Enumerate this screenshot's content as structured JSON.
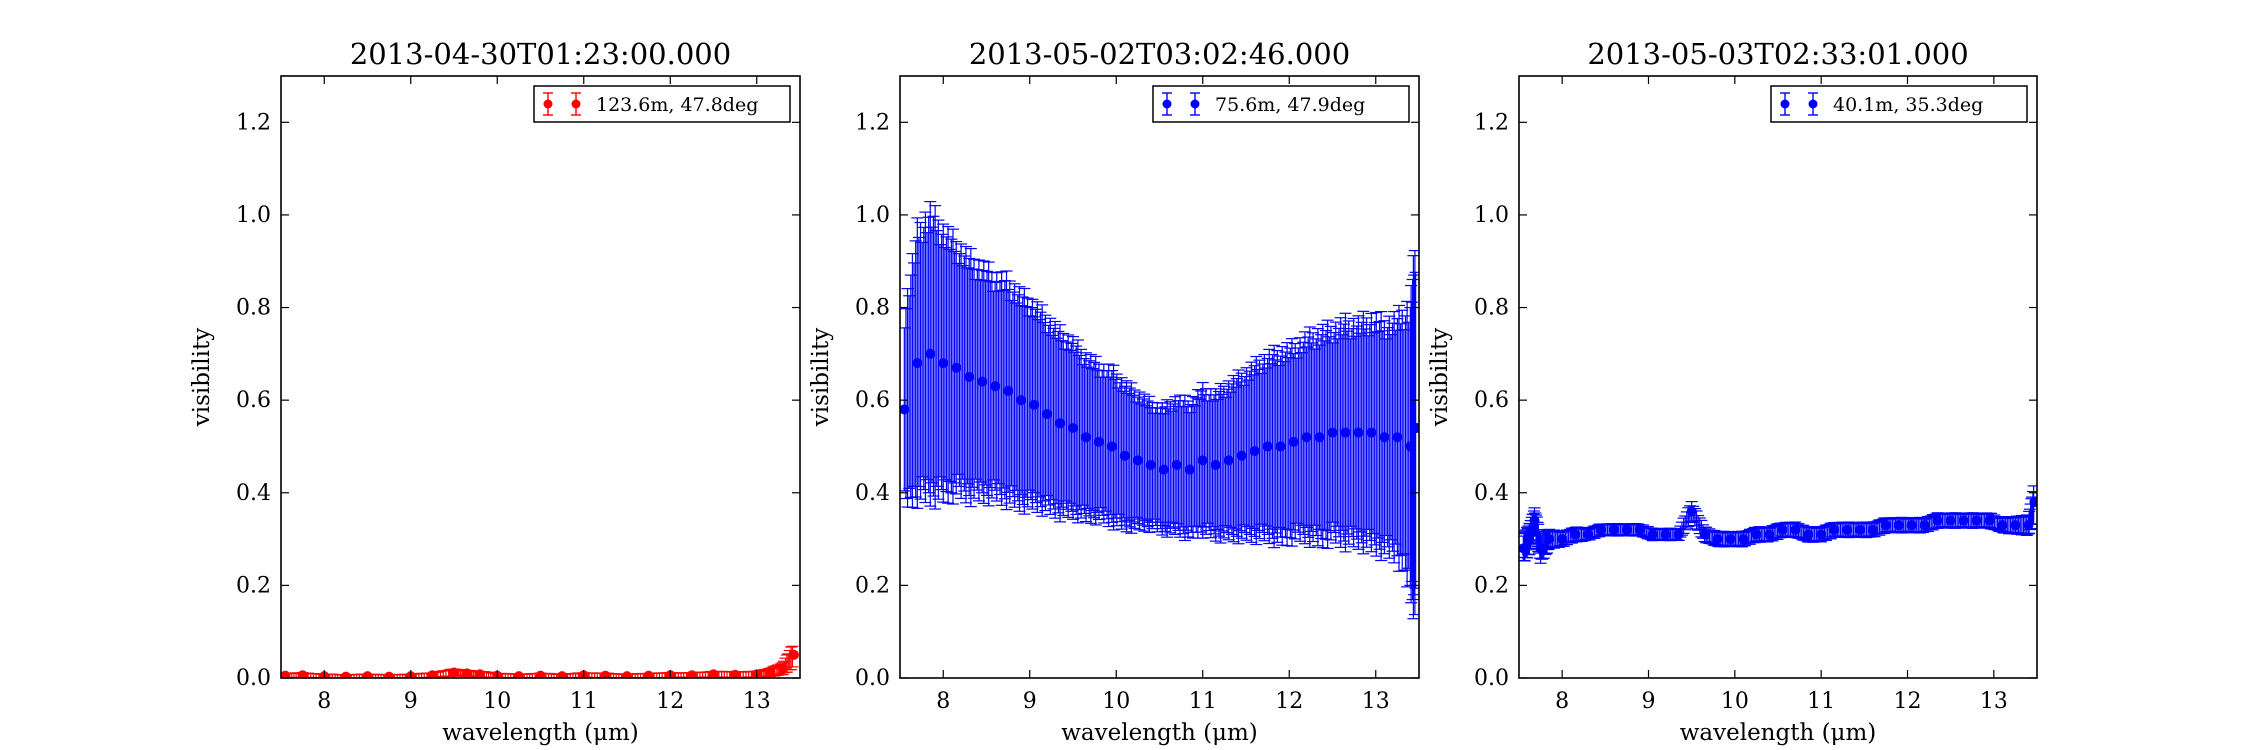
{
  "chart_data": [
    {
      "type": "scatter",
      "title": "2013-04-30T01:23:00.000",
      "xlabel": "wavelength (μm)",
      "ylabel": "visibility",
      "xlim": [
        7.5,
        13.5
      ],
      "ylim": [
        0.0,
        1.3
      ],
      "xticks": [
        8,
        9,
        10,
        11,
        12,
        13
      ],
      "yticks": [
        0.0,
        0.2,
        0.4,
        0.6,
        0.8,
        1.0,
        1.2
      ],
      "xtick_labels": [
        "8",
        "9",
        "10",
        "11",
        "12",
        "13"
      ],
      "ytick_labels": [
        "0.0",
        "0.2",
        "0.4",
        "0.6",
        "0.8",
        "1.0",
        "1.2"
      ],
      "legend_position": "top-right",
      "grid": false,
      "series": [
        {
          "name": "123.6m, 47.8deg",
          "color": "#ff0000",
          "x": [
            7.55,
            7.75,
            8.0,
            8.25,
            8.5,
            8.75,
            9.0,
            9.25,
            9.5,
            9.65,
            9.8,
            10.0,
            10.25,
            10.5,
            10.75,
            11.0,
            11.25,
            11.5,
            11.75,
            12.0,
            12.25,
            12.5,
            12.75,
            13.0,
            13.15,
            13.3,
            13.43
          ],
          "y": [
            0.005,
            0.006,
            0.004,
            0.003,
            0.004,
            0.003,
            0.004,
            0.006,
            0.012,
            0.01,
            0.008,
            0.005,
            0.004,
            0.005,
            0.004,
            0.006,
            0.005,
            0.004,
            0.005,
            0.006,
            0.006,
            0.008,
            0.007,
            0.008,
            0.012,
            0.02,
            0.05
          ],
          "err": [
            0.005,
            0.005,
            0.004,
            0.004,
            0.004,
            0.004,
            0.004,
            0.005,
            0.007,
            0.006,
            0.006,
            0.005,
            0.004,
            0.005,
            0.004,
            0.005,
            0.005,
            0.004,
            0.005,
            0.005,
            0.005,
            0.006,
            0.006,
            0.006,
            0.008,
            0.012,
            0.025
          ]
        }
      ]
    },
    {
      "type": "scatter",
      "title": "2013-05-02T03:02:46.000",
      "xlabel": "wavelength (μm)",
      "ylabel": "visibility",
      "xlim": [
        7.5,
        13.5
      ],
      "ylim": [
        0.0,
        1.3
      ],
      "xticks": [
        8,
        9,
        10,
        11,
        12,
        13
      ],
      "yticks": [
        0.0,
        0.2,
        0.4,
        0.6,
        0.8,
        1.0,
        1.2
      ],
      "xtick_labels": [
        "8",
        "9",
        "10",
        "11",
        "12",
        "13"
      ],
      "ytick_labels": [
        "0.0",
        "0.2",
        "0.4",
        "0.6",
        "0.8",
        "1.0",
        "1.2"
      ],
      "legend_position": "top-right",
      "grid": false,
      "series": [
        {
          "name": "75.6m, 47.9deg",
          "color": "#0000ff",
          "x": [
            7.55,
            7.7,
            7.85,
            8.0,
            8.15,
            8.3,
            8.45,
            8.6,
            8.75,
            8.9,
            9.05,
            9.2,
            9.35,
            9.5,
            9.65,
            9.8,
            9.95,
            10.1,
            10.25,
            10.4,
            10.55,
            10.7,
            10.85,
            11.0,
            11.15,
            11.3,
            11.45,
            11.6,
            11.75,
            11.9,
            12.05,
            12.2,
            12.35,
            12.5,
            12.65,
            12.8,
            12.95,
            13.1,
            13.25,
            13.4,
            13.47
          ],
          "y": [
            0.58,
            0.68,
            0.7,
            0.68,
            0.67,
            0.65,
            0.64,
            0.63,
            0.62,
            0.6,
            0.59,
            0.57,
            0.55,
            0.54,
            0.52,
            0.51,
            0.5,
            0.48,
            0.47,
            0.46,
            0.45,
            0.46,
            0.45,
            0.47,
            0.46,
            0.47,
            0.48,
            0.49,
            0.5,
            0.5,
            0.51,
            0.52,
            0.52,
            0.53,
            0.53,
            0.53,
            0.53,
            0.52,
            0.52,
            0.5,
            0.54
          ],
          "err": [
            0.2,
            0.28,
            0.3,
            0.28,
            0.26,
            0.25,
            0.24,
            0.23,
            0.23,
            0.22,
            0.21,
            0.2,
            0.19,
            0.18,
            0.17,
            0.16,
            0.16,
            0.15,
            0.14,
            0.13,
            0.13,
            0.14,
            0.14,
            0.15,
            0.15,
            0.16,
            0.17,
            0.18,
            0.19,
            0.2,
            0.2,
            0.21,
            0.22,
            0.22,
            0.23,
            0.23,
            0.24,
            0.24,
            0.25,
            0.3,
            0.4
          ]
        }
      ]
    },
    {
      "type": "scatter",
      "title": "2013-05-03T02:33:01.000",
      "xlabel": "wavelength (μm)",
      "ylabel": "visibility",
      "xlim": [
        7.5,
        13.5
      ],
      "ylim": [
        0.0,
        1.3
      ],
      "xticks": [
        8,
        9,
        10,
        11,
        12,
        13
      ],
      "yticks": [
        0.0,
        0.2,
        0.4,
        0.6,
        0.8,
        1.0,
        1.2
      ],
      "xtick_labels": [
        "8",
        "9",
        "10",
        "11",
        "12",
        "13"
      ],
      "ytick_labels": [
        "0.0",
        "0.2",
        "0.4",
        "0.6",
        "0.8",
        "1.0",
        "1.2"
      ],
      "legend_position": "top-right",
      "grid": false,
      "series": [
        {
          "name": "40.1m, 35.3deg",
          "color": "#0000ff",
          "x": [
            7.55,
            7.62,
            7.68,
            7.75,
            7.85,
            8.0,
            8.15,
            8.3,
            8.45,
            8.6,
            8.75,
            8.9,
            9.05,
            9.2,
            9.35,
            9.5,
            9.65,
            9.8,
            9.95,
            10.1,
            10.25,
            10.4,
            10.55,
            10.7,
            10.85,
            11.0,
            11.15,
            11.3,
            11.45,
            11.6,
            11.75,
            11.9,
            12.05,
            12.2,
            12.35,
            12.5,
            12.65,
            12.8,
            12.95,
            13.1,
            13.25,
            13.4,
            13.47
          ],
          "y": [
            0.28,
            0.3,
            0.34,
            0.28,
            0.3,
            0.3,
            0.31,
            0.31,
            0.32,
            0.32,
            0.32,
            0.32,
            0.31,
            0.31,
            0.31,
            0.36,
            0.31,
            0.3,
            0.3,
            0.3,
            0.31,
            0.31,
            0.32,
            0.32,
            0.31,
            0.31,
            0.32,
            0.32,
            0.32,
            0.32,
            0.33,
            0.33,
            0.33,
            0.33,
            0.34,
            0.34,
            0.34,
            0.34,
            0.34,
            0.33,
            0.33,
            0.33,
            0.38
          ],
          "err": [
            0.03,
            0.03,
            0.025,
            0.03,
            0.02,
            0.015,
            0.015,
            0.012,
            0.012,
            0.012,
            0.012,
            0.012,
            0.012,
            0.012,
            0.012,
            0.02,
            0.015,
            0.015,
            0.015,
            0.015,
            0.015,
            0.015,
            0.015,
            0.015,
            0.015,
            0.015,
            0.015,
            0.015,
            0.015,
            0.015,
            0.015,
            0.015,
            0.015,
            0.015,
            0.015,
            0.015,
            0.015,
            0.015,
            0.015,
            0.015,
            0.018,
            0.02,
            0.04
          ]
        }
      ]
    }
  ]
}
